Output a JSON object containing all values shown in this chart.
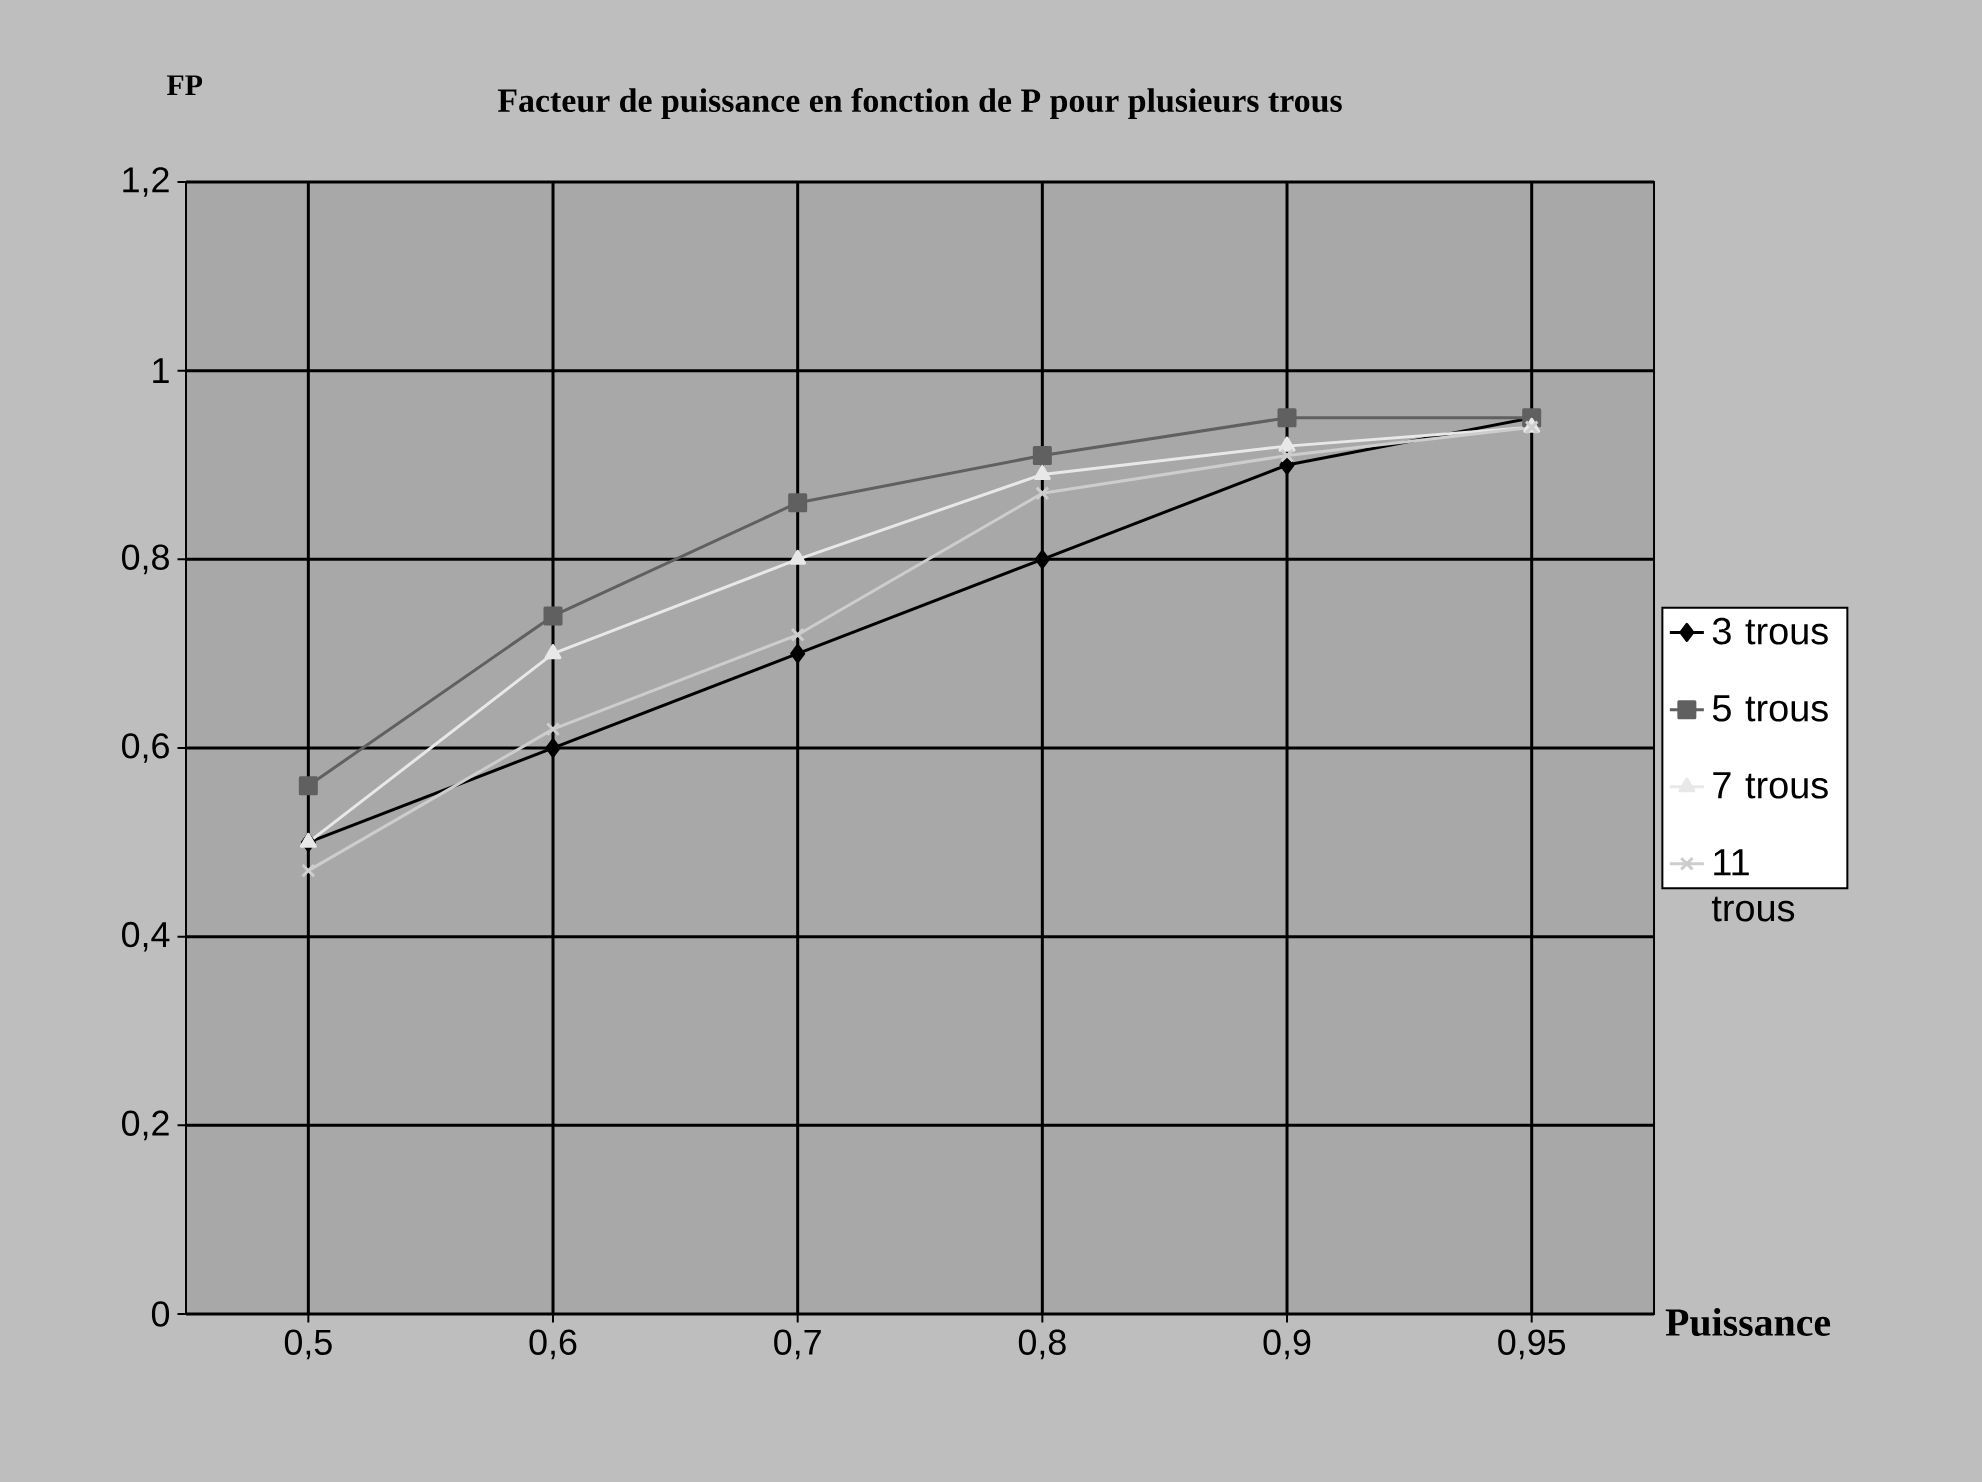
{
  "chart_data": {
    "type": "line",
    "title": "Facteur de puissance en fonction de P pour plusieurs trous",
    "xlabel": "Puissance",
    "ylabel": "FP",
    "categories": [
      "0,5",
      "0,6",
      "0,7",
      "0,8",
      "0,9",
      "0,95"
    ],
    "ylim": [
      0,
      1.2
    ],
    "yticks": [
      0,
      {
        "value": 0.2,
        "label": "0,2"
      },
      {
        "value": 0.4,
        "label": "0,4"
      },
      {
        "value": 0.6,
        "label": "0,6"
      },
      {
        "value": 0.8,
        "label": "0,8"
      },
      1,
      {
        "value": 1.2,
        "label": "1,2"
      }
    ],
    "grid": true,
    "legend": "right",
    "series": [
      {
        "name": "3 trous",
        "color": "#000000",
        "marker": "diamond",
        "values": [
          0.5,
          0.6,
          0.7,
          0.8,
          0.9,
          0.95
        ]
      },
      {
        "name": "5 trous",
        "color": "#606060",
        "marker": "square",
        "values": [
          0.56,
          0.74,
          0.86,
          0.91,
          0.95,
          0.95
        ]
      },
      {
        "name": "7 trous",
        "color": "#e8e8e8",
        "marker": "triangle",
        "values": [
          0.5,
          0.7,
          0.8,
          0.89,
          0.92,
          0.94
        ]
      },
      {
        "name": "11 trous",
        "color": "#cdcdcd",
        "marker": "cross",
        "values": [
          0.47,
          0.62,
          0.72,
          0.87,
          0.91,
          0.94
        ]
      }
    ]
  }
}
